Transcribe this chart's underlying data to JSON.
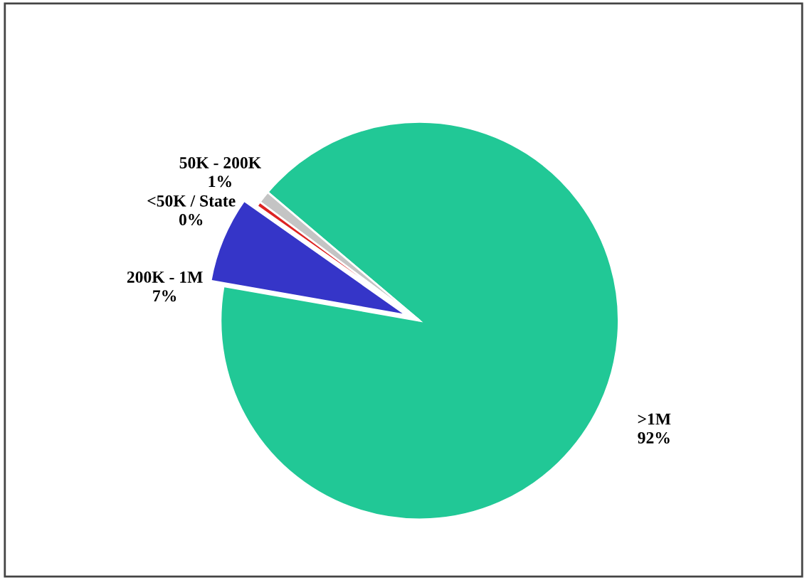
{
  "chart_data": {
    "type": "pie",
    "categories": [
      ">1M",
      "50K - 200K",
      "<50K / State",
      "200K - 1M"
    ],
    "values": [
      91.6,
      1.0,
      0.4,
      7.0
    ],
    "value_labels": [
      "92%",
      "1%",
      "0%",
      "7%"
    ],
    "colors": [
      "#21c896",
      "#c4c4c4",
      "#dd2222",
      "#3535c8"
    ],
    "legend": false
  }
}
